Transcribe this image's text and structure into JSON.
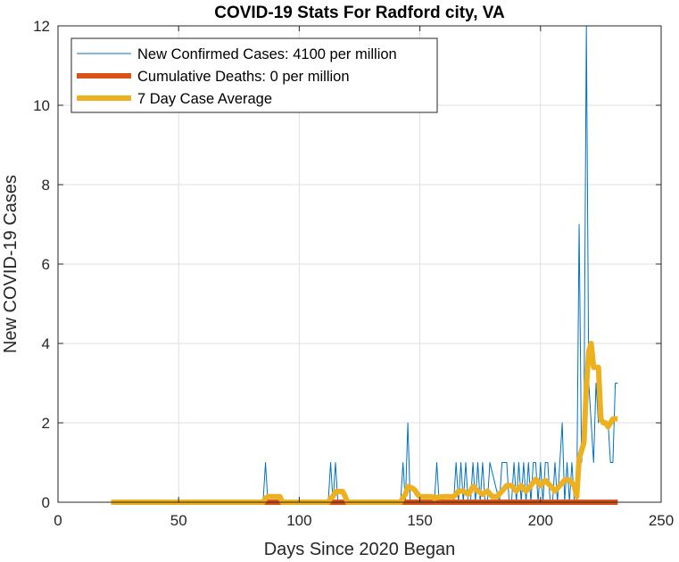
{
  "chart_data": {
    "type": "line",
    "title": "COVID-19 Stats For Radford city, VA",
    "xlabel": "Days Since 2020 Began",
    "ylabel": "New COVID-19 Cases",
    "xlim": [
      0,
      250
    ],
    "ylim": [
      0,
      12
    ],
    "xticks": [
      0,
      50,
      100,
      150,
      200,
      250
    ],
    "yticks": [
      0,
      2,
      4,
      6,
      8,
      10,
      12
    ],
    "grid": true,
    "legend_position": "top-left",
    "series": [
      {
        "name": "New Confirmed Cases: 4100 per million",
        "color": "#0072BD",
        "x": [
          22,
          85,
          86,
          87,
          112,
          113,
          114,
          115,
          116,
          142,
          143,
          144,
          145,
          146,
          156,
          157,
          158,
          164,
          165,
          166,
          167,
          168,
          169,
          170,
          171,
          172,
          173,
          174,
          175,
          176,
          177,
          178,
          179,
          183,
          184,
          185,
          186,
          187,
          188,
          189,
          190,
          191,
          192,
          193,
          194,
          195,
          196,
          197,
          198,
          199,
          200,
          201,
          202,
          203,
          204,
          205,
          206,
          207,
          208,
          209,
          210,
          211,
          212,
          213,
          214,
          215,
          216,
          217,
          218,
          219,
          220,
          221,
          222,
          223,
          224,
          225,
          226,
          227,
          228,
          229,
          230,
          231,
          232
        ],
        "y": [
          0,
          0,
          1,
          0,
          0,
          1,
          0,
          1,
          0,
          0,
          1,
          0,
          2,
          0,
          0,
          1,
          0,
          0,
          1,
          0,
          1,
          0,
          1,
          0,
          0,
          1,
          0,
          1,
          0,
          1,
          0,
          0,
          1,
          0,
          1,
          1,
          1,
          0,
          0,
          1,
          0,
          1,
          0,
          1,
          0,
          1,
          0,
          1,
          1,
          0,
          1,
          0,
          1,
          1,
          0,
          0,
          1,
          0,
          1,
          2,
          0,
          1,
          0,
          1,
          0,
          0,
          7,
          1,
          2,
          12,
          3,
          2,
          1,
          3,
          2,
          3,
          2,
          2,
          2,
          1,
          1,
          3,
          3
        ]
      },
      {
        "name": "Cumulative Deaths: 0 per million",
        "color": "#D95319",
        "x": [
          22,
          232
        ],
        "y": [
          0,
          0
        ]
      },
      {
        "name": "7 Day Case Average",
        "color": "#EDB120",
        "x": [
          22,
          85,
          86,
          87,
          92,
          93,
          112,
          113,
          114,
          115,
          118,
          119,
          120,
          142,
          143,
          144,
          145,
          147,
          148,
          149,
          150,
          155,
          156,
          157,
          160,
          162,
          164,
          165,
          166,
          168,
          170,
          171,
          172,
          174,
          176,
          178,
          180,
          182,
          184,
          186,
          188,
          190,
          192,
          194,
          196,
          198,
          200,
          202,
          204,
          206,
          208,
          210,
          212,
          214,
          215,
          216,
          217,
          218,
          219,
          220,
          221,
          222,
          223,
          224,
          225,
          226,
          227,
          228,
          229,
          230,
          231,
          232
        ],
        "y": [
          0,
          0,
          0.1,
          0.14,
          0.14,
          0,
          0,
          0.1,
          0.15,
          0.27,
          0.27,
          0.15,
          0,
          0,
          0.12,
          0.2,
          0.4,
          0.35,
          0.3,
          0.2,
          0.14,
          0.14,
          0.1,
          0.12,
          0.14,
          0.14,
          0.14,
          0.2,
          0.28,
          0.28,
          0.2,
          0.28,
          0.4,
          0.28,
          0.2,
          0.28,
          0.14,
          0.14,
          0.28,
          0.42,
          0.42,
          0.28,
          0.42,
          0.28,
          0.42,
          0.58,
          0.42,
          0.55,
          0.42,
          0.28,
          0.42,
          0.56,
          0.56,
          0.42,
          0.14,
          1.1,
          1.3,
          1.5,
          2.9,
          3.8,
          4.0,
          3.4,
          3.4,
          3.4,
          2.1,
          2.0,
          2.0,
          1.9,
          2.0,
          2.1,
          2.1,
          2.1
        ]
      }
    ]
  }
}
